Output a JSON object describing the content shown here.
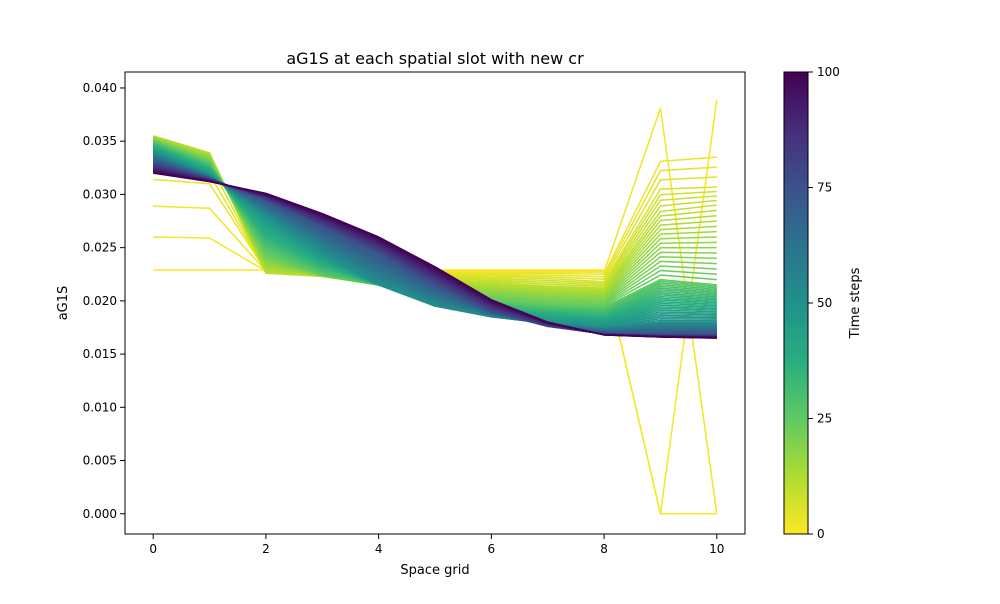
{
  "chart_data": {
    "type": "line",
    "title": "aG1S at each spatial slot with new cr",
    "xlabel": "Space grid",
    "ylabel": "aG1S",
    "x": [
      0,
      1,
      2,
      3,
      4,
      5,
      6,
      7,
      8,
      9,
      10
    ],
    "xlim": [
      -0.5,
      10.5
    ],
    "ylim": [
      -0.0019,
      0.0415
    ],
    "xticks": [
      "0",
      "2",
      "4",
      "6",
      "8",
      "10"
    ],
    "yticks": [
      "0.000",
      "0.005",
      "0.010",
      "0.015",
      "0.020",
      "0.025",
      "0.030",
      "0.035",
      "0.040"
    ],
    "grid": false,
    "colormap": "viridis_r",
    "colorbar": {
      "label": "Time steps",
      "range": [
        0,
        100
      ],
      "ticks": [
        "0",
        "25",
        "50",
        "75",
        "100"
      ]
    },
    "series_count": 101,
    "series_note": "One line per time step 0-100, colored by time step",
    "series_keyframes": [
      {
        "t": 0,
        "values": [
          0.0229,
          0.0229,
          0.0229,
          0.0229,
          0.0229,
          0.0229,
          0.0229,
          0.0229,
          0.0229,
          0.0,
          0.0
        ]
      },
      {
        "t": 1,
        "values": [
          0.026,
          0.0259,
          0.0228,
          0.0228,
          0.0228,
          0.0228,
          0.0228,
          0.0228,
          0.0228,
          0.0,
          0.0389
        ]
      },
      {
        "t": 2,
        "values": [
          0.0289,
          0.0287,
          0.0228,
          0.0227,
          0.0227,
          0.0227,
          0.0227,
          0.0227,
          0.0227,
          0.0381,
          0.0
        ]
      },
      {
        "t": 3,
        "values": [
          0.0314,
          0.031,
          0.0228,
          0.0227,
          0.0226,
          0.0226,
          0.0226,
          0.0226,
          0.0225,
          0.0331,
          0.0335
        ]
      },
      {
        "t": 6,
        "values": [
          0.0354,
          0.0338,
          0.0227,
          0.0226,
          0.0224,
          0.0223,
          0.0222,
          0.0221,
          0.0218,
          0.0305,
          0.0307
        ]
      },
      {
        "t": 10,
        "values": [
          0.0355,
          0.0339,
          0.0226,
          0.0223,
          0.0215,
          0.0219,
          0.0217,
          0.0214,
          0.0212,
          0.0284,
          0.029
        ]
      },
      {
        "t": 25,
        "values": [
          0.035,
          0.033,
          0.0245,
          0.0224,
          0.0215,
          0.0205,
          0.02,
          0.0196,
          0.0194,
          0.022,
          0.0215
        ]
      },
      {
        "t": 50,
        "values": [
          0.034,
          0.0318,
          0.028,
          0.0245,
          0.0215,
          0.0195,
          0.0185,
          0.0179,
          0.0175,
          0.018,
          0.018
        ]
      },
      {
        "t": 75,
        "values": [
          0.033,
          0.0315,
          0.0295,
          0.027,
          0.0245,
          0.0215,
          0.019,
          0.0176,
          0.0169,
          0.0168,
          0.0168
        ]
      },
      {
        "t": 100,
        "values": [
          0.032,
          0.0312,
          0.0301,
          0.0282,
          0.026,
          0.0232,
          0.0201,
          0.018,
          0.0168,
          0.0166,
          0.0165
        ]
      }
    ]
  }
}
